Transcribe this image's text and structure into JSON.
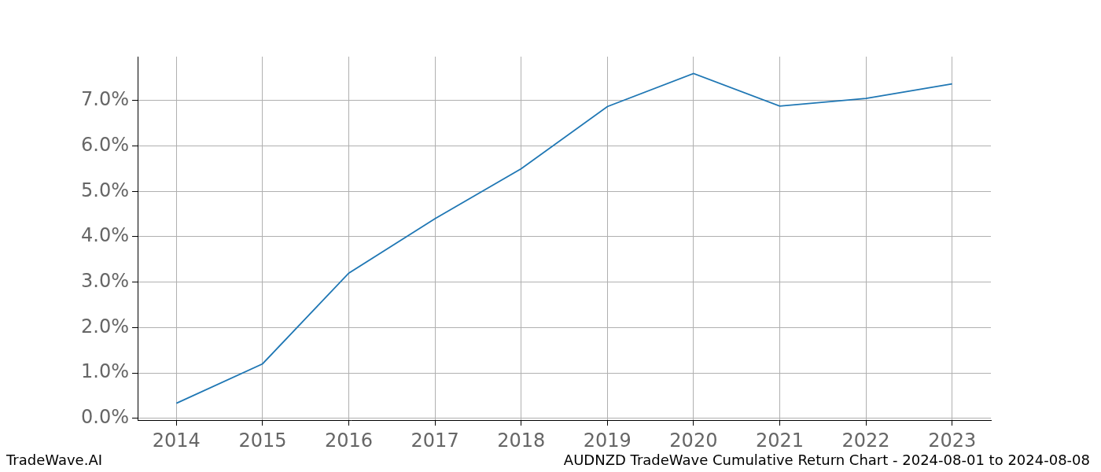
{
  "chart_data": {
    "type": "line",
    "x": [
      2014,
      2015,
      2016,
      2017,
      2018,
      2019,
      2020,
      2021,
      2022,
      2023
    ],
    "values": [
      0.33,
      1.2,
      3.2,
      4.4,
      5.5,
      6.87,
      7.6,
      6.88,
      7.05,
      7.37
    ],
    "color": "#1f77b4",
    "marker": "none",
    "xlim": [
      2013.55,
      2023.45
    ],
    "xticks": [
      2014,
      2015,
      2016,
      2017,
      2018,
      2019,
      2020,
      2021,
      2022,
      2023
    ],
    "ylim": [
      -0.04,
      7.97
    ],
    "yticks": [
      {
        "value": 0,
        "label": "0.0%"
      },
      {
        "value": 1,
        "label": "1.0%"
      },
      {
        "value": 2,
        "label": "2.0%"
      },
      {
        "value": 3,
        "label": "3.0%"
      },
      {
        "value": 4,
        "label": "4.0%"
      },
      {
        "value": 5,
        "label": "5.0%"
      },
      {
        "value": 6,
        "label": "6.0%"
      },
      {
        "value": 7,
        "label": "7.0%"
      }
    ],
    "grid": true
  },
  "footer": {
    "left": "TradeWave.AI",
    "right": "AUDNZD TradeWave Cumulative Return Chart - 2024-08-01 to 2024-08-08"
  }
}
